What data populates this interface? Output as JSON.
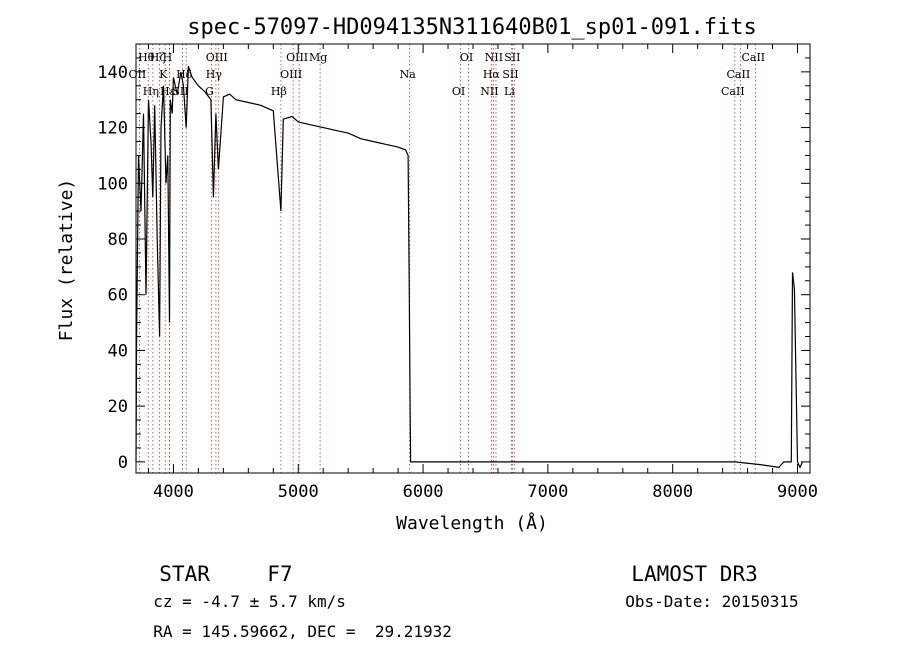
{
  "chart_data": {
    "type": "line",
    "title": "spec-57097-HD094135N311640B01_sp01-091.fits",
    "xlabel": "Wavelength (Å)",
    "ylabel": "Flux (relative)",
    "xlim": [
      3700,
      9100
    ],
    "ylim": [
      -4,
      150
    ],
    "x_ticks": [
      4000,
      5000,
      6000,
      7000,
      8000,
      9000
    ],
    "y_ticks": [
      0,
      20,
      40,
      60,
      80,
      100,
      120,
      140
    ],
    "grid": false,
    "series": [
      {
        "x": [
          3700,
          3705,
          3720,
          3740,
          3760,
          3780,
          3800,
          3820,
          3835,
          3850,
          3870,
          3889,
          3900,
          3920,
          3940,
          3955,
          3968,
          3975,
          3990,
          4000,
          4030,
          4060,
          4080,
          4102,
          4120,
          4150,
          4200,
          4250,
          4300,
          4320,
          4340,
          4360,
          4400,
          4450,
          4500,
          4600,
          4700,
          4800,
          4861,
          4880,
          4950,
          5000,
          5100,
          5200,
          5300,
          5400,
          5500,
          5600,
          5700,
          5800,
          5860,
          5880,
          5890,
          5896,
          5900,
          5905,
          5915,
          6000,
          6500,
          7000,
          7200,
          7500,
          8000,
          8300,
          8500,
          8700,
          8850,
          8890,
          8920,
          8950,
          8960,
          8975,
          9000,
          9020,
          9040
        ],
        "y": [
          0,
          45,
          110,
          90,
          125,
          60,
          130,
          115,
          95,
          128,
          80,
          45,
          120,
          135,
          100,
          110,
          50,
          130,
          125,
          138,
          132,
          140,
          135,
          120,
          142,
          138,
          135,
          133,
          130,
          95,
          125,
          105,
          131,
          132,
          130,
          129,
          128,
          126,
          90,
          123,
          124,
          122,
          121,
          120,
          119,
          118,
          116,
          115,
          114,
          113,
          112,
          110,
          60,
          20,
          0,
          0,
          0,
          0,
          0,
          0,
          0,
          0,
          0,
          0,
          0,
          -1,
          -2,
          0,
          0,
          0,
          68,
          62,
          0,
          -2,
          0
        ]
      }
    ],
    "lines": [
      {
        "label": "Hθ",
        "x": 3798
      },
      {
        "label": "OII",
        "x": 3727
      },
      {
        "label": "Hη",
        "x": 3835
      },
      {
        "label": "Hζ",
        "x": 3889
      },
      {
        "label": "K",
        "x": 3934
      },
      {
        "label": "Hε",
        "x": 3970
      },
      {
        "label": "H",
        "x": 3968
      },
      {
        "label": "Hδ",
        "x": 4102
      },
      {
        "label": "SII",
        "x": 4072
      },
      {
        "label": "OIII",
        "x": 4363
      },
      {
        "label": "Hγ",
        "x": 4340
      },
      {
        "label": "G",
        "x": 4305
      },
      {
        "label": "OIII",
        "x": 5007
      },
      {
        "label": "OIII",
        "x": 4959
      },
      {
        "label": "Hβ",
        "x": 4861
      },
      {
        "label": "Mg",
        "x": 5175
      },
      {
        "label": "Na",
        "x": 5893
      },
      {
        "label": "OI",
        "x": 6300
      },
      {
        "label": "OI",
        "x": 6364
      },
      {
        "label": "Hα",
        "x": 6563
      },
      {
        "label": "NII",
        "x": 6548
      },
      {
        "label": "NII",
        "x": 6584
      },
      {
        "label": "SII",
        "x": 6716
      },
      {
        "label": "Li",
        "x": 6708
      },
      {
        "label": "SII",
        "x": 6731
      },
      {
        "label": "CaII",
        "x": 8542
      },
      {
        "label": "CaII",
        "x": 8498
      },
      {
        "label": "CaII",
        "x": 8662
      }
    ]
  },
  "info": {
    "class": "STAR",
    "subclass": "F7",
    "survey": "LAMOST DR3",
    "cz": "cz = -4.7 ± 5.7 km/s",
    "obs_date": "Obs-Date: 20150315",
    "radec": "RA = 145.59662, DEC =  29.21932"
  }
}
